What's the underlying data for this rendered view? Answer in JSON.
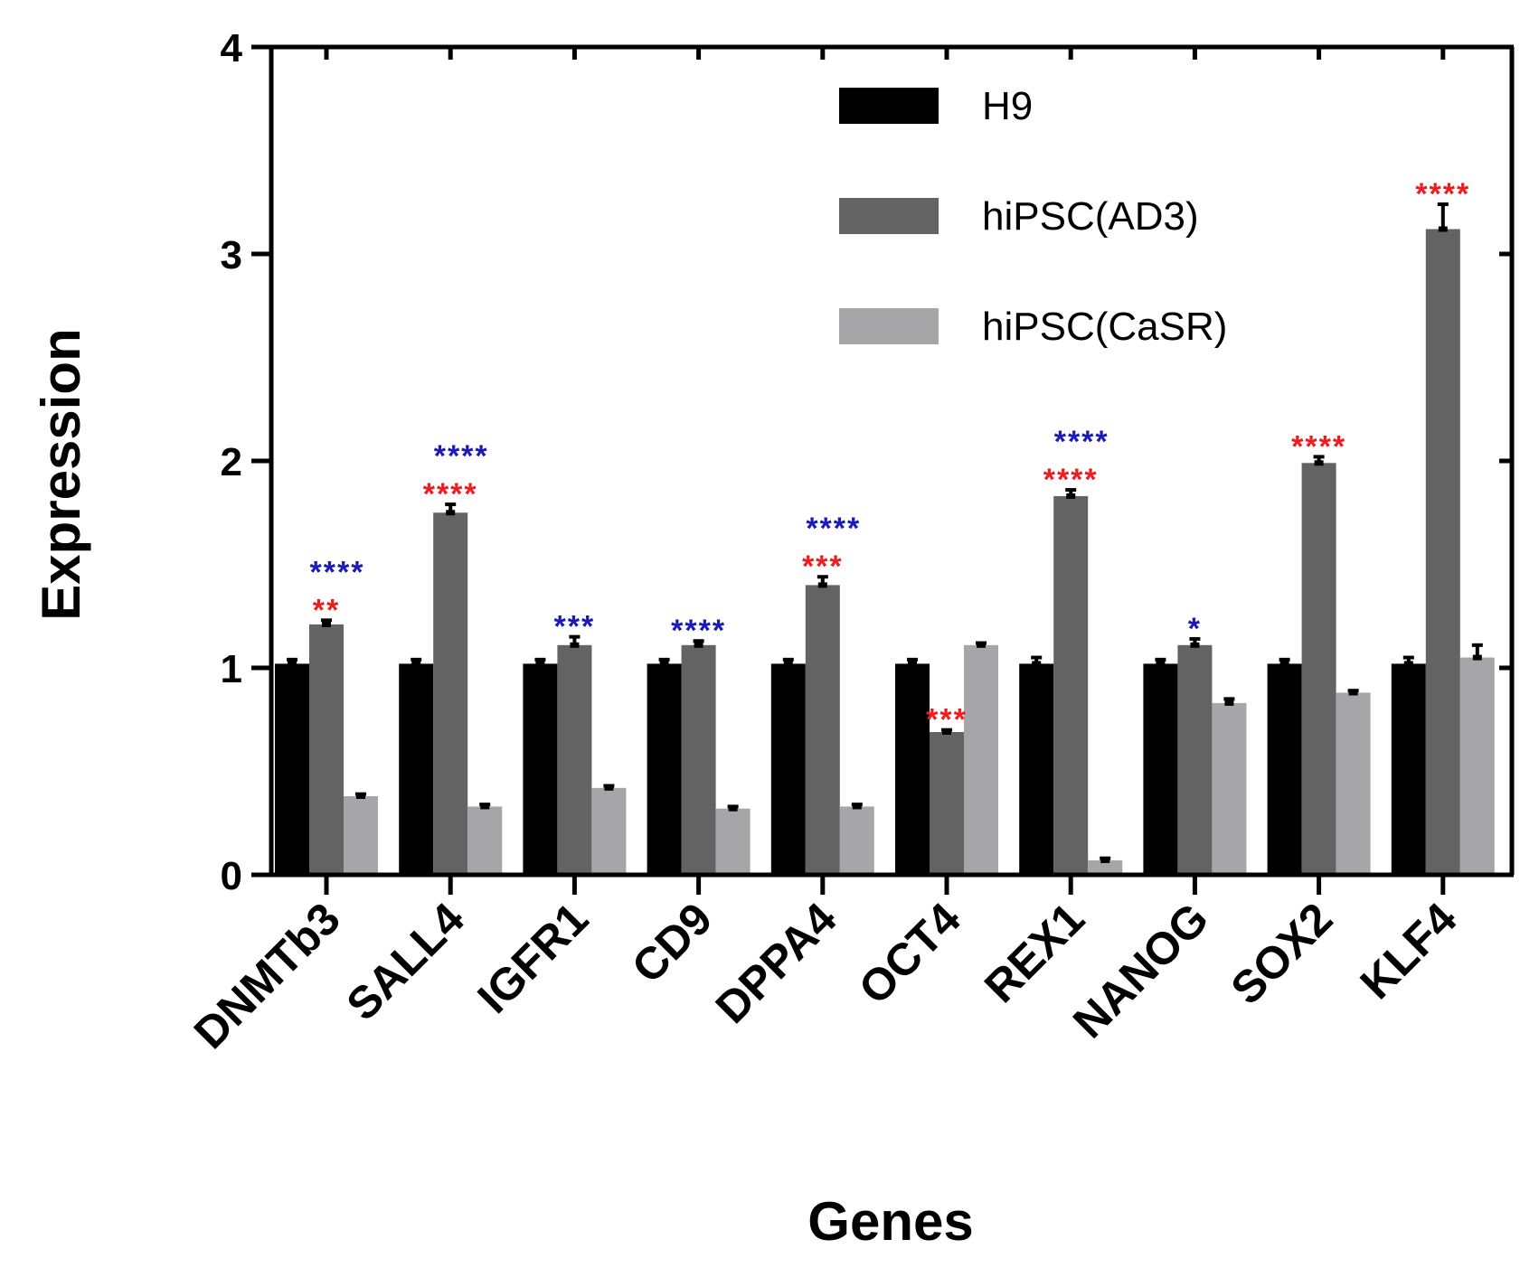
{
  "chart_data": {
    "type": "bar",
    "title": "",
    "xlabel": "Genes",
    "ylabel": "Expression",
    "ylim": [
      0,
      4
    ],
    "yticks": [
      "0",
      "1",
      "2",
      "3",
      "4"
    ],
    "legend_position": "top-right",
    "categories": [
      "DNMTb3",
      "SALL4",
      "IGFR1",
      "CD9",
      "DPPA4",
      "OCT4",
      "REX1",
      "NANOG",
      "SOX2",
      "KLF4"
    ],
    "series": [
      {
        "name": "H9",
        "color": "#000000",
        "values": [
          1.02,
          1.02,
          1.02,
          1.02,
          1.02,
          1.02,
          1.02,
          1.02,
          1.02,
          1.02
        ],
        "errors": [
          0.02,
          0.02,
          0.02,
          0.02,
          0.02,
          0.02,
          0.03,
          0.02,
          0.02,
          0.03
        ]
      },
      {
        "name": "hiPSC(AD3)",
        "color": "#636363",
        "values": [
          1.21,
          1.75,
          1.11,
          1.11,
          1.4,
          0.69,
          1.83,
          1.11,
          1.99,
          3.12
        ],
        "errors": [
          0.02,
          0.04,
          0.04,
          0.02,
          0.04,
          0.01,
          0.03,
          0.03,
          0.03,
          0.12
        ]
      },
      {
        "name": "hiPSC(CaSR)",
        "color": "#a6a6a8",
        "values": [
          0.38,
          0.33,
          0.42,
          0.32,
          0.33,
          1.11,
          0.07,
          0.83,
          0.88,
          1.05
        ],
        "errors": [
          0.01,
          0.01,
          0.01,
          0.01,
          0.01,
          0.01,
          0.01,
          0.02,
          0.01,
          0.06
        ]
      }
    ],
    "annotations": [
      {
        "category": "DNMTb3",
        "rows": [
          {
            "text": "****",
            "color": "#1a1ab8"
          },
          {
            "text": "**",
            "color": "#ee1c1c"
          }
        ]
      },
      {
        "category": "SALL4",
        "rows": [
          {
            "text": "****",
            "color": "#1a1ab8"
          },
          {
            "text": "****",
            "color": "#ee1c1c"
          }
        ]
      },
      {
        "category": "IGFR1",
        "rows": [
          {
            "text": "***",
            "color": "#1a1ab8"
          }
        ]
      },
      {
        "category": "CD9",
        "rows": [
          {
            "text": "****",
            "color": "#1a1ab8"
          }
        ]
      },
      {
        "category": "DPPA4",
        "rows": [
          {
            "text": "****",
            "color": "#1a1ab8"
          },
          {
            "text": "***",
            "color": "#ee1c1c"
          }
        ]
      },
      {
        "category": "OCT4",
        "rows": [
          {
            "text": "***",
            "color": "#ee1c1c"
          }
        ]
      },
      {
        "category": "REX1",
        "rows": [
          {
            "text": "****",
            "color": "#1a1ab8"
          },
          {
            "text": "****",
            "color": "#ee1c1c"
          }
        ]
      },
      {
        "category": "NANOG",
        "rows": [
          {
            "text": "*",
            "color": "#1a1ab8"
          }
        ]
      },
      {
        "category": "SOX2",
        "rows": [
          {
            "text": "****",
            "color": "#ee1c1c"
          }
        ]
      },
      {
        "category": "KLF4",
        "rows": [
          {
            "text": "****",
            "color": "#ee1c1c"
          }
        ]
      }
    ]
  }
}
